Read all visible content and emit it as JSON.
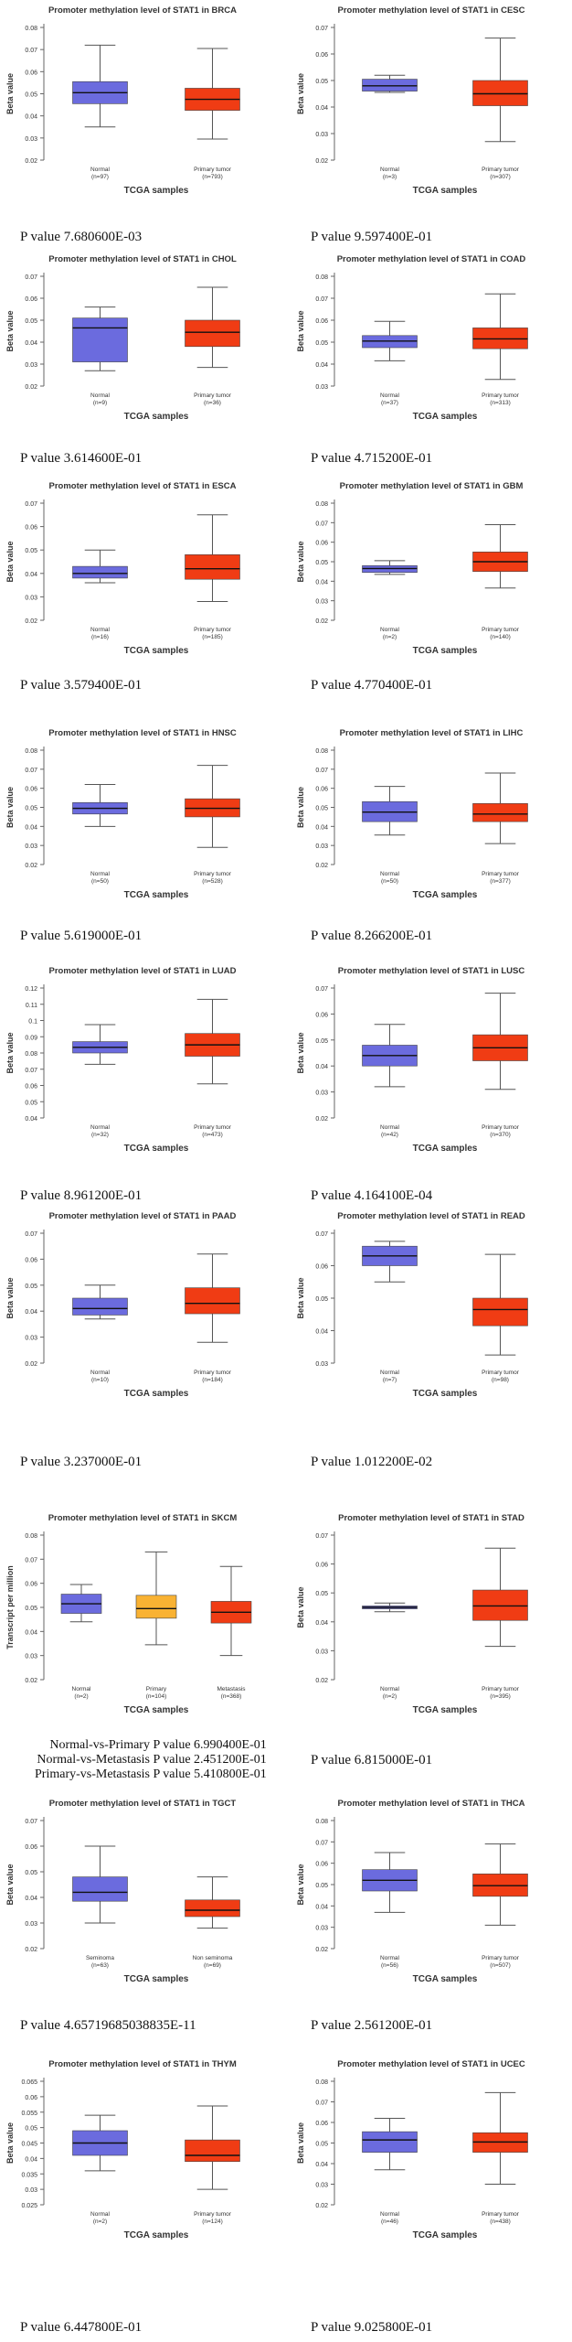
{
  "colors": {
    "normal": "#6b6bde",
    "tumor": "#f03c14",
    "primary_skcm": "#f9b233",
    "axis": "#666666",
    "text": "#333333",
    "median": "#111111"
  },
  "chart_data": [
    {
      "type": "boxplot",
      "title": "Promoter methylation level of STAT1 in BRCA",
      "ylabel": "Beta value",
      "xlabel": "TCGA samples",
      "ylim": [
        0.02,
        0.08
      ],
      "yticks": [
        "0.02",
        "0.03",
        "0.04",
        "0.05",
        "0.06",
        "0.07",
        "0.08"
      ],
      "groups": [
        {
          "name": "Normal",
          "n": "(n=97)",
          "color": "normal",
          "min": 0.035,
          "q1": 0.0455,
          "median": 0.0505,
          "q3": 0.0555,
          "max": 0.072
        },
        {
          "name": "Primary tumor",
          "n": "(n=793)",
          "color": "tumor",
          "min": 0.0295,
          "q1": 0.0425,
          "median": 0.0475,
          "q3": 0.0525,
          "max": 0.0705
        }
      ],
      "pvalue": "P value 7.680600E-03"
    },
    {
      "type": "boxplot",
      "title": "Promoter methylation level of STAT1 in CESC",
      "ylabel": "Beta value",
      "xlabel": "TCGA samples",
      "ylim": [
        0.02,
        0.07
      ],
      "yticks": [
        "0.02",
        "0.03",
        "0.04",
        "0.05",
        "0.06",
        "0.07"
      ],
      "groups": [
        {
          "name": "Normal",
          "n": "(n=3)",
          "color": "normal",
          "min": 0.0455,
          "q1": 0.046,
          "median": 0.048,
          "q3": 0.0505,
          "max": 0.052
        },
        {
          "name": "Primary tumor",
          "n": "(n=307)",
          "color": "tumor",
          "min": 0.027,
          "q1": 0.0405,
          "median": 0.045,
          "q3": 0.05,
          "max": 0.066
        }
      ],
      "pvalue": "P value 9.597400E-01"
    },
    {
      "type": "boxplot",
      "title": "Promoter methylation level of STAT1 in CHOL",
      "ylabel": "Beta value",
      "xlabel": "TCGA samples",
      "ylim": [
        0.02,
        0.07
      ],
      "yticks": [
        "0.02",
        "0.03",
        "0.04",
        "0.05",
        "0.06",
        "0.07"
      ],
      "groups": [
        {
          "name": "Normal",
          "n": "(n=9)",
          "color": "normal",
          "min": 0.027,
          "q1": 0.031,
          "median": 0.0465,
          "q3": 0.051,
          "max": 0.056
        },
        {
          "name": "Primary tumor",
          "n": "(n=36)",
          "color": "tumor",
          "min": 0.0285,
          "q1": 0.038,
          "median": 0.0445,
          "q3": 0.05,
          "max": 0.065
        }
      ],
      "pvalue": "P value 3.614600E-01"
    },
    {
      "type": "boxplot",
      "title": "Promoter methylation level of STAT1 in COAD",
      "ylabel": "Beta value",
      "xlabel": "TCGA samples",
      "ylim": [
        0.03,
        0.08
      ],
      "yticks": [
        "0.03",
        "0.04",
        "0.05",
        "0.06",
        "0.07",
        "0.08"
      ],
      "groups": [
        {
          "name": "Normal",
          "n": "(n=37)",
          "color": "normal",
          "min": 0.0415,
          "q1": 0.0475,
          "median": 0.0505,
          "q3": 0.053,
          "max": 0.0595
        },
        {
          "name": "Primary tumor",
          "n": "(n=313)",
          "color": "tumor",
          "min": 0.033,
          "q1": 0.047,
          "median": 0.0515,
          "q3": 0.0565,
          "max": 0.072
        }
      ],
      "pvalue": "P value 4.715200E-01"
    },
    {
      "type": "boxplot",
      "title": "Promoter methylation level of STAT1 in ESCA",
      "ylabel": "Beta value",
      "xlabel": "TCGA samples",
      "ylim": [
        0.02,
        0.07
      ],
      "yticks": [
        "0.02",
        "0.03",
        "0.04",
        "0.05",
        "0.06",
        "0.07"
      ],
      "groups": [
        {
          "name": "Normal",
          "n": "(n=16)",
          "color": "normal",
          "min": 0.036,
          "q1": 0.038,
          "median": 0.04,
          "q3": 0.043,
          "max": 0.05
        },
        {
          "name": "Primary tumor",
          "n": "(n=185)",
          "color": "tumor",
          "min": 0.028,
          "q1": 0.0375,
          "median": 0.042,
          "q3": 0.048,
          "max": 0.065
        }
      ],
      "pvalue": "P value 3.579400E-01"
    },
    {
      "type": "boxplot",
      "title": "Promoter methylation level of STAT1 in GBM",
      "ylabel": "Beta value",
      "xlabel": "TCGA samples",
      "ylim": [
        0.02,
        0.08
      ],
      "yticks": [
        "0.02",
        "0.03",
        "0.04",
        "0.05",
        "0.06",
        "0.07",
        "0.08"
      ],
      "groups": [
        {
          "name": "Normal",
          "n": "(n=2)",
          "color": "normal",
          "min": 0.0435,
          "q1": 0.0445,
          "median": 0.0465,
          "q3": 0.048,
          "max": 0.0505
        },
        {
          "name": "Primary tumor",
          "n": "(n=140)",
          "color": "tumor",
          "min": 0.0365,
          "q1": 0.045,
          "median": 0.05,
          "q3": 0.055,
          "max": 0.069
        }
      ],
      "pvalue": "P value  4.770400E-01"
    },
    {
      "type": "boxplot",
      "title": "Promoter methylation level of STAT1 in HNSC",
      "ylabel": "Beta value",
      "xlabel": "TCGA samples",
      "ylim": [
        0.02,
        0.08
      ],
      "yticks": [
        "0.02",
        "0.03",
        "0.04",
        "0.05",
        "0.06",
        "0.07",
        "0.08"
      ],
      "groups": [
        {
          "name": "Normal",
          "n": "(n=50)",
          "color": "normal",
          "min": 0.04,
          "q1": 0.0465,
          "median": 0.0495,
          "q3": 0.0525,
          "max": 0.062
        },
        {
          "name": "Primary tumor",
          "n": "(n=528)",
          "color": "tumor",
          "min": 0.029,
          "q1": 0.045,
          "median": 0.0495,
          "q3": 0.0545,
          "max": 0.072
        }
      ],
      "pvalue": "P value 5.619000E-01"
    },
    {
      "type": "boxplot",
      "title": "Promoter methylation level of STAT1 in LIHC",
      "ylabel": "Beta value",
      "xlabel": "TCGA samples",
      "ylim": [
        0.02,
        0.08
      ],
      "yticks": [
        "0.02",
        "0.03",
        "0.04",
        "0.05",
        "0.06",
        "0.07",
        "0.08"
      ],
      "groups": [
        {
          "name": "Normal",
          "n": "(n=50)",
          "color": "normal",
          "min": 0.0355,
          "q1": 0.0425,
          "median": 0.0475,
          "q3": 0.053,
          "max": 0.061
        },
        {
          "name": "Primary tumor",
          "n": "(n=377)",
          "color": "tumor",
          "min": 0.031,
          "q1": 0.0425,
          "median": 0.0465,
          "q3": 0.052,
          "max": 0.068
        }
      ],
      "pvalue": "P value 8.266200E-01"
    },
    {
      "type": "boxplot",
      "title": "Promoter methylation level of STAT1 in LUAD",
      "ylabel": "Beta value",
      "xlabel": "TCGA samples",
      "ylim": [
        0.04,
        0.12
      ],
      "yticks": [
        "0.04",
        "0.05",
        "0.06",
        "0.07",
        "0.08",
        "0.09",
        "0.1",
        "0.11",
        "0.12"
      ],
      "groups": [
        {
          "name": "Normal",
          "n": "(n=32)",
          "color": "normal",
          "min": 0.073,
          "q1": 0.08,
          "median": 0.0835,
          "q3": 0.087,
          "max": 0.0975
        },
        {
          "name": "Primary tumor",
          "n": "(n=473)",
          "color": "tumor",
          "min": 0.061,
          "q1": 0.078,
          "median": 0.085,
          "q3": 0.092,
          "max": 0.113
        }
      ],
      "pvalue": "P value 8.961200E-01"
    },
    {
      "type": "boxplot",
      "title": "Promoter methylation level of STAT1 in LUSC",
      "ylabel": "Beta value",
      "xlabel": "TCGA samples",
      "ylim": [
        0.02,
        0.07
      ],
      "yticks": [
        "0.02",
        "0.03",
        "0.04",
        "0.05",
        "0.06",
        "0.07"
      ],
      "groups": [
        {
          "name": "Normal",
          "n": "(n=42)",
          "color": "normal",
          "min": 0.032,
          "q1": 0.04,
          "median": 0.044,
          "q3": 0.048,
          "max": 0.056
        },
        {
          "name": "Primary tumor",
          "n": "(n=370)",
          "color": "tumor",
          "min": 0.031,
          "q1": 0.042,
          "median": 0.047,
          "q3": 0.052,
          "max": 0.068
        }
      ],
      "pvalue": "P value   4.164100E-04"
    },
    {
      "type": "boxplot",
      "title": "Promoter methylation level of STAT1 in PAAD",
      "ylabel": "Beta value",
      "xlabel": "TCGA samples",
      "ylim": [
        0.02,
        0.07
      ],
      "yticks": [
        "0.02",
        "0.03",
        "0.04",
        "0.05",
        "0.06",
        "0.07"
      ],
      "groups": [
        {
          "name": "Normal",
          "n": "(n=10)",
          "color": "normal",
          "min": 0.037,
          "q1": 0.0385,
          "median": 0.041,
          "q3": 0.045,
          "max": 0.05
        },
        {
          "name": "Primary tumor",
          "n": "(n=184)",
          "color": "tumor",
          "min": 0.028,
          "q1": 0.039,
          "median": 0.043,
          "q3": 0.049,
          "max": 0.062
        }
      ],
      "pvalue": "P value 3.237000E-01"
    },
    {
      "type": "boxplot",
      "title": "Promoter methylation level of STAT1 in READ",
      "ylabel": "Beta value",
      "xlabel": "TCGA samples",
      "ylim": [
        0.03,
        0.07
      ],
      "yticks": [
        "0.03",
        "0.04",
        "0.05",
        "0.06",
        "0.07"
      ],
      "groups": [
        {
          "name": "Normal",
          "n": "(n=7)",
          "color": "normal",
          "min": 0.055,
          "q1": 0.06,
          "median": 0.063,
          "q3": 0.066,
          "max": 0.0675
        },
        {
          "name": "Primary tumor",
          "n": "(n=98)",
          "color": "tumor",
          "min": 0.0325,
          "q1": 0.0415,
          "median": 0.0465,
          "q3": 0.05,
          "max": 0.0635
        }
      ],
      "pvalue": "P value 1.012200E-02"
    },
    {
      "type": "boxplot",
      "title": "Promoter methylation level of STAT1 in SKCM",
      "ylabel": "Transcript per million",
      "xlabel": "TCGA samples",
      "ylim": [
        0.02,
        0.08
      ],
      "yticks": [
        "0.02",
        "0.03",
        "0.04",
        "0.05",
        "0.06",
        "0.07",
        "0.08"
      ],
      "groups": [
        {
          "name": "Normal",
          "n": "(n=2)",
          "color": "normal",
          "min": 0.044,
          "q1": 0.0475,
          "median": 0.0515,
          "q3": 0.0555,
          "max": 0.0595
        },
        {
          "name": "Primary",
          "n": "(n=104)",
          "color": "primary_skcm",
          "min": 0.0345,
          "q1": 0.0455,
          "median": 0.0495,
          "q3": 0.055,
          "max": 0.073
        },
        {
          "name": "Metastasis",
          "n": "(n=368)",
          "color": "tumor",
          "min": 0.03,
          "q1": 0.0435,
          "median": 0.048,
          "q3": 0.0525,
          "max": 0.067
        }
      ],
      "pvalues": [
        "Normal-vs-Primary P value 6.990400E-01",
        "Normal-vs-Metastasis P value 2.451200E-01",
        "Primary-vs-Metastasis P value 5.410800E-01"
      ]
    },
    {
      "type": "boxplot",
      "title": "Promoter methylation level of STAT1 in STAD",
      "ylabel": "Beta value",
      "xlabel": "TCGA samples",
      "ylim": [
        0.02,
        0.07
      ],
      "yticks": [
        "0.02",
        "0.03",
        "0.04",
        "0.05",
        "0.06",
        "0.07"
      ],
      "groups": [
        {
          "name": "Normal",
          "n": "(n=2)",
          "color": "normal",
          "min": 0.0435,
          "q1": 0.0445,
          "median": 0.045,
          "q3": 0.0455,
          "max": 0.0465
        },
        {
          "name": "Primary tumor",
          "n": "(n=395)",
          "color": "tumor",
          "min": 0.0315,
          "q1": 0.0405,
          "median": 0.0455,
          "q3": 0.051,
          "max": 0.0655
        }
      ],
      "pvalue": "P value 6.815000E-01"
    },
    {
      "type": "boxplot",
      "title": "Promoter methylation level of STAT1 in TGCT",
      "ylabel": "Beta value",
      "xlabel": "TCGA samples",
      "ylim": [
        0.02,
        0.07
      ],
      "yticks": [
        "0.02",
        "0.03",
        "0.04",
        "0.05",
        "0.06",
        "0.07"
      ],
      "groups": [
        {
          "name": "Seminoma",
          "n": "(n=63)",
          "color": "normal",
          "min": 0.03,
          "q1": 0.0385,
          "median": 0.042,
          "q3": 0.048,
          "max": 0.06
        },
        {
          "name": "Non seminoma",
          "n": "(n=69)",
          "color": "tumor",
          "min": 0.028,
          "q1": 0.0325,
          "median": 0.035,
          "q3": 0.039,
          "max": 0.048
        }
      ],
      "pvalue": "P value 4.65719685038835E-11"
    },
    {
      "type": "boxplot",
      "title": "Promoter methylation level of STAT1 in THCA",
      "ylabel": "Beta value",
      "xlabel": "TCGA samples",
      "ylim": [
        0.02,
        0.08
      ],
      "yticks": [
        "0.02",
        "0.03",
        "0.04",
        "0.05",
        "0.06",
        "0.07",
        "0.08"
      ],
      "groups": [
        {
          "name": "Normal",
          "n": "(n=56)",
          "color": "normal",
          "min": 0.037,
          "q1": 0.047,
          "median": 0.052,
          "q3": 0.057,
          "max": 0.065
        },
        {
          "name": "Primary tumor",
          "n": "(n=507)",
          "color": "tumor",
          "min": 0.031,
          "q1": 0.0445,
          "median": 0.0495,
          "q3": 0.055,
          "max": 0.069
        }
      ],
      "pvalue": "P value 2.561200E-01"
    },
    {
      "type": "boxplot",
      "title": "Promoter methylation level of STAT1 in THYM",
      "ylabel": "Beta value",
      "xlabel": "TCGA samples",
      "ylim": [
        0.025,
        0.065
      ],
      "yticks": [
        "0.025",
        "0.03",
        "0.035",
        "0.04",
        "0.045",
        "0.05",
        "0.055",
        "0.06",
        "0.065"
      ],
      "groups": [
        {
          "name": "Normal",
          "n": "(n=2)",
          "color": "normal",
          "min": 0.036,
          "q1": 0.041,
          "median": 0.045,
          "q3": 0.049,
          "max": 0.054
        },
        {
          "name": "Primary tumor",
          "n": "(n=124)",
          "color": "tumor",
          "min": 0.03,
          "q1": 0.039,
          "median": 0.041,
          "q3": 0.046,
          "max": 0.057
        }
      ],
      "pvalue": "P value 6.447800E-01"
    },
    {
      "type": "boxplot",
      "title": "Promoter methylation level of STAT1 in UCEC",
      "ylabel": "Beta value",
      "xlabel": "TCGA samples",
      "ylim": [
        0.02,
        0.08
      ],
      "yticks": [
        "0.02",
        "0.03",
        "0.04",
        "0.05",
        "0.06",
        "0.07",
        "0.08"
      ],
      "groups": [
        {
          "name": "Normal",
          "n": "(n=46)",
          "color": "normal",
          "min": 0.037,
          "q1": 0.0455,
          "median": 0.0515,
          "q3": 0.0555,
          "max": 0.062
        },
        {
          "name": "Primary tumor",
          "n": "(n=438)",
          "color": "tumor",
          "min": 0.03,
          "q1": 0.0455,
          "median": 0.0505,
          "q3": 0.055,
          "max": 0.0745
        }
      ],
      "pvalue": "P value 9.025800E-01"
    }
  ]
}
